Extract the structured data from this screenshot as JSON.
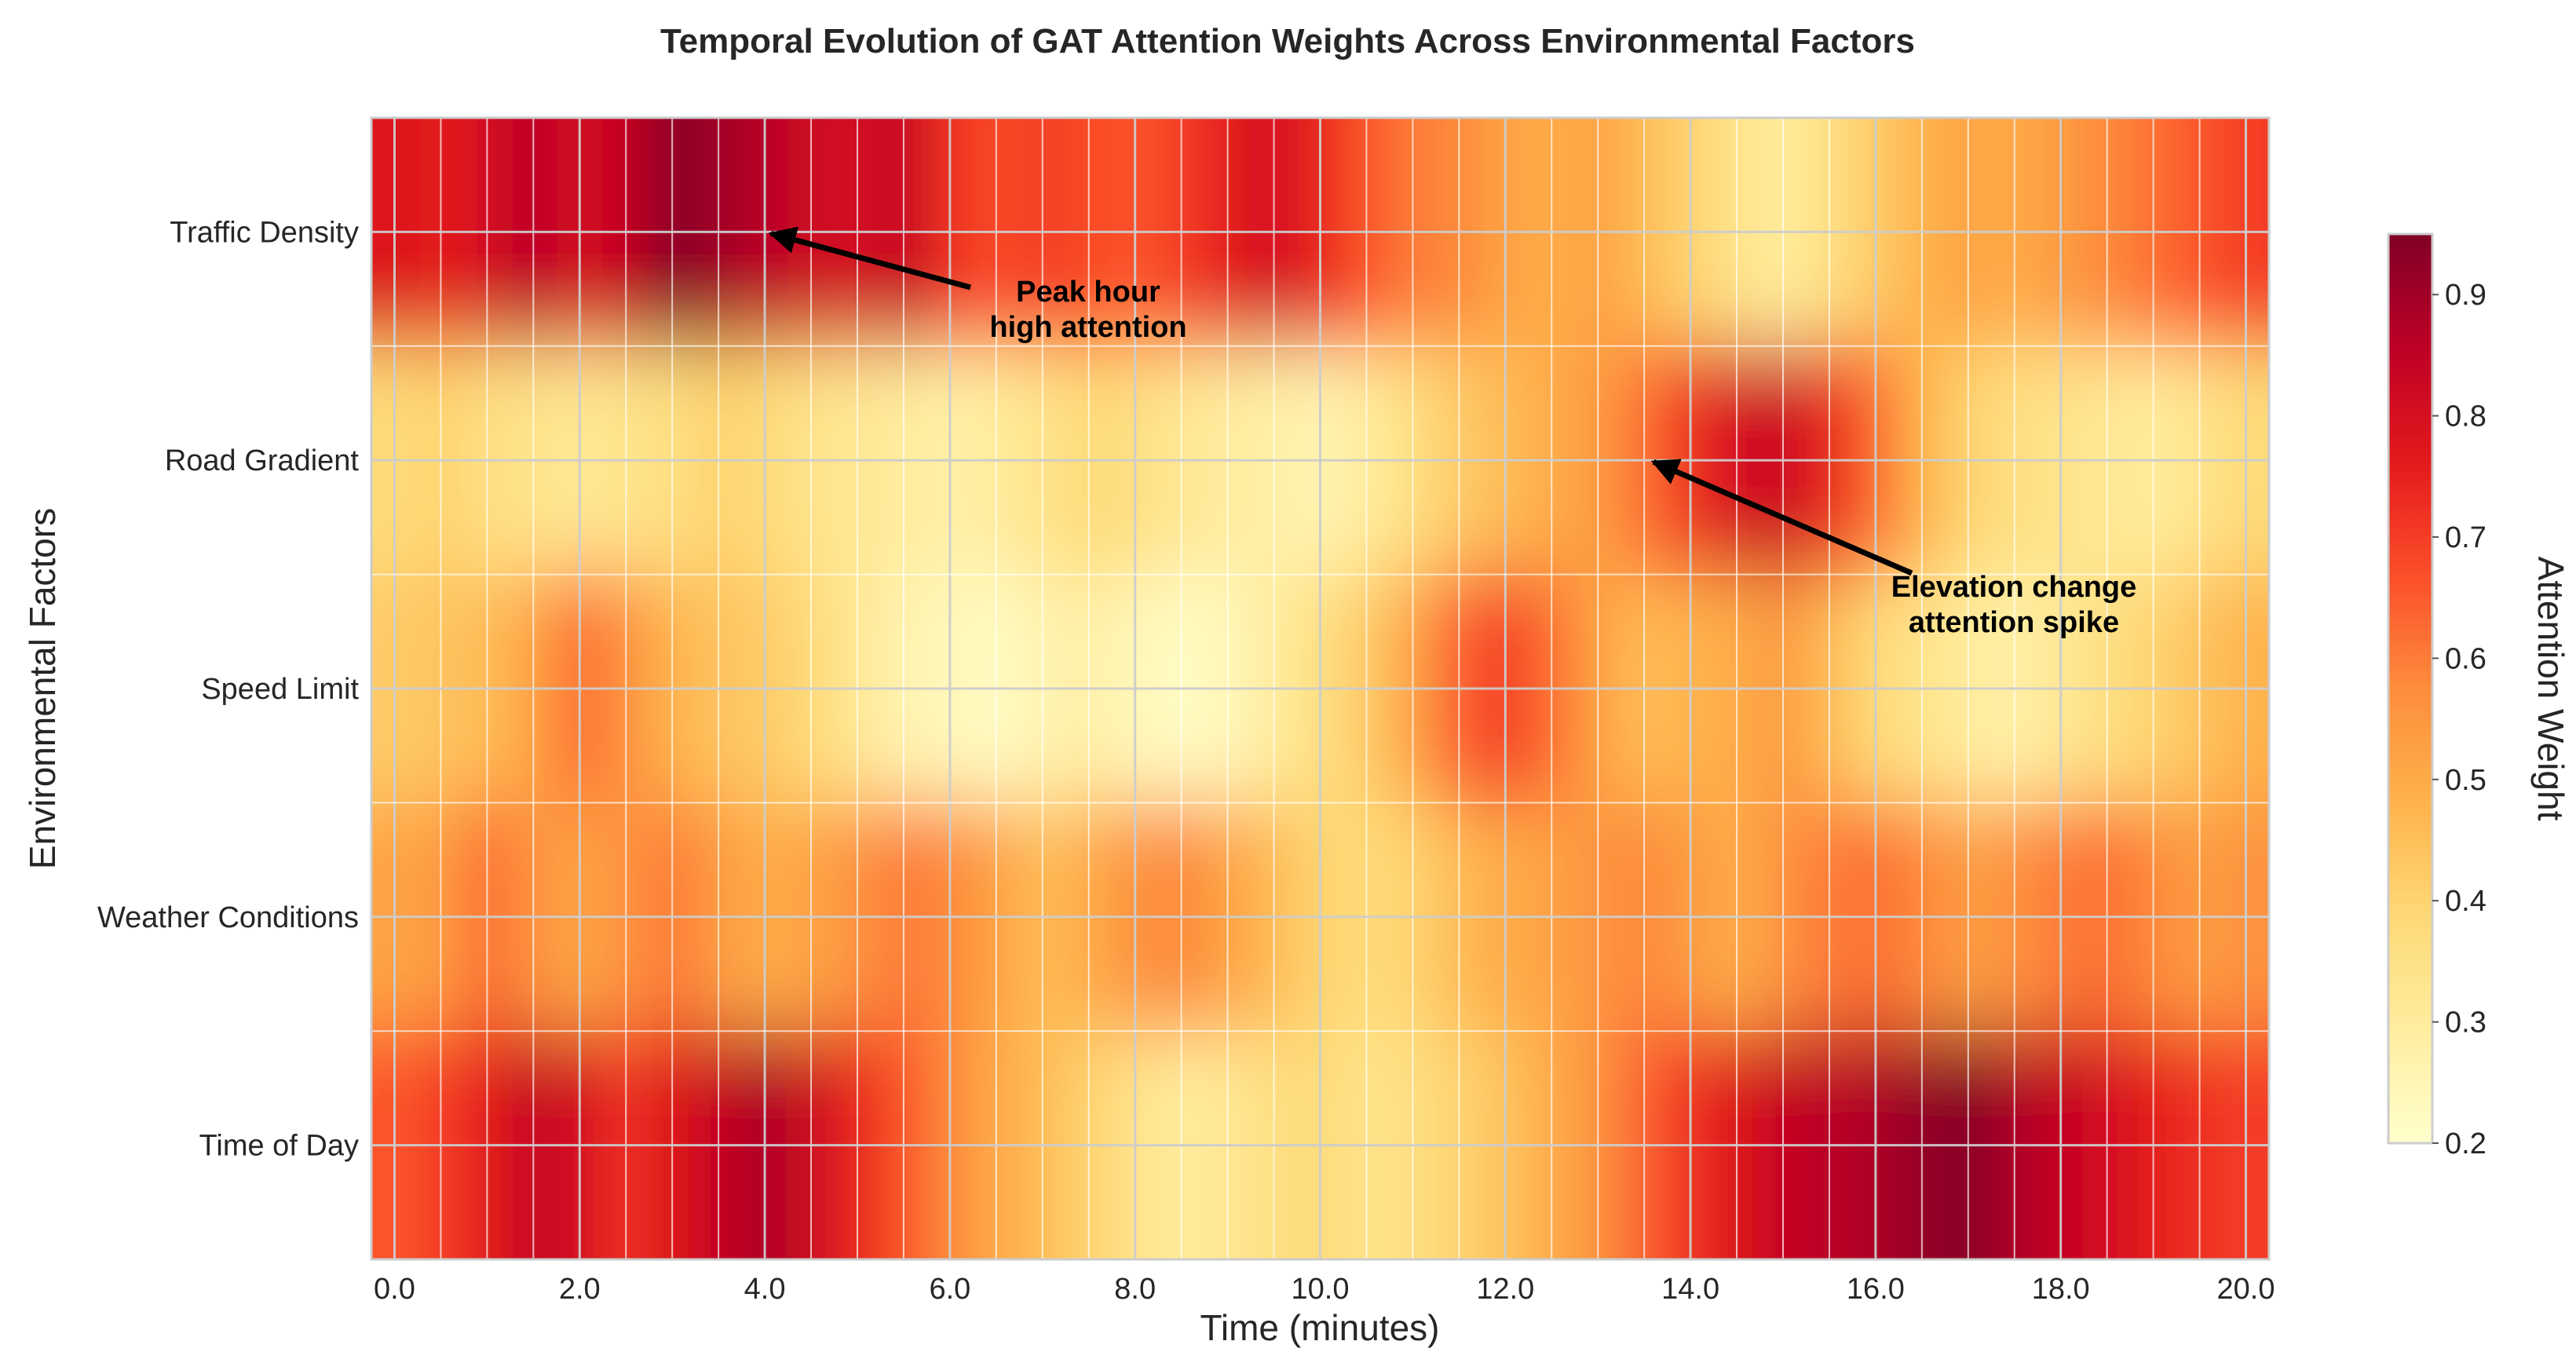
{
  "chart_data": {
    "type": "heatmap",
    "title": "Temporal Evolution of GAT Attention Weights Across Environmental Factors",
    "xlabel": "Time (minutes)",
    "ylabel": "Environmental Factors",
    "xlim": [
      -0.25,
      20.25
    ],
    "x_ticks": [
      "0.0",
      "2.0",
      "4.0",
      "6.0",
      "8.0",
      "10.0",
      "12.0",
      "14.0",
      "16.0",
      "18.0",
      "20.0"
    ],
    "x_tick_values": [
      0,
      2,
      4,
      6,
      8,
      10,
      12,
      14,
      16,
      18,
      20
    ],
    "factors": [
      "Traffic Density",
      "Road Gradient",
      "Speed Limit",
      "Weather Conditions",
      "Time of Day"
    ],
    "time": [
      0.0,
      0.5,
      1.0,
      1.5,
      2.0,
      2.5,
      3.0,
      3.5,
      4.0,
      4.5,
      5.0,
      5.5,
      6.0,
      6.5,
      7.0,
      7.5,
      8.0,
      8.5,
      9.0,
      9.5,
      10.0,
      10.5,
      11.0,
      11.5,
      12.0,
      12.5,
      13.0,
      13.5,
      14.0,
      14.5,
      15.0,
      15.5,
      16.0,
      16.5,
      17.0,
      17.5,
      18.0,
      18.5,
      19.0,
      19.5,
      20.0
    ],
    "values": [
      [
        0.78,
        0.76,
        0.8,
        0.86,
        0.8,
        0.84,
        0.94,
        0.9,
        0.86,
        0.82,
        0.8,
        0.84,
        0.72,
        0.68,
        0.7,
        0.68,
        0.66,
        0.7,
        0.76,
        0.8,
        0.74,
        0.66,
        0.6,
        0.58,
        0.52,
        0.5,
        0.52,
        0.46,
        0.4,
        0.34,
        0.3,
        0.36,
        0.42,
        0.48,
        0.52,
        0.5,
        0.54,
        0.58,
        0.62,
        0.66,
        0.7
      ],
      [
        0.38,
        0.4,
        0.36,
        0.34,
        0.32,
        0.34,
        0.36,
        0.4,
        0.38,
        0.34,
        0.32,
        0.3,
        0.28,
        0.3,
        0.34,
        0.38,
        0.36,
        0.32,
        0.3,
        0.28,
        0.26,
        0.3,
        0.36,
        0.42,
        0.46,
        0.5,
        0.54,
        0.62,
        0.72,
        0.8,
        0.82,
        0.74,
        0.62,
        0.48,
        0.4,
        0.36,
        0.34,
        0.32,
        0.3,
        0.34,
        0.38
      ],
      [
        0.42,
        0.44,
        0.46,
        0.52,
        0.62,
        0.56,
        0.48,
        0.44,
        0.42,
        0.38,
        0.32,
        0.26,
        0.24,
        0.22,
        0.26,
        0.28,
        0.24,
        0.22,
        0.24,
        0.3,
        0.36,
        0.42,
        0.52,
        0.64,
        0.7,
        0.62,
        0.52,
        0.46,
        0.48,
        0.5,
        0.54,
        0.46,
        0.38,
        0.34,
        0.3,
        0.28,
        0.32,
        0.36,
        0.4,
        0.44,
        0.48
      ],
      [
        0.52,
        0.54,
        0.62,
        0.56,
        0.52,
        0.56,
        0.6,
        0.54,
        0.5,
        0.52,
        0.56,
        0.6,
        0.58,
        0.52,
        0.46,
        0.5,
        0.56,
        0.58,
        0.52,
        0.46,
        0.4,
        0.38,
        0.4,
        0.46,
        0.5,
        0.52,
        0.56,
        0.58,
        0.54,
        0.5,
        0.56,
        0.6,
        0.62,
        0.58,
        0.54,
        0.56,
        0.6,
        0.62,
        0.58,
        0.54,
        0.56
      ],
      [
        0.66,
        0.7,
        0.76,
        0.84,
        0.8,
        0.72,
        0.78,
        0.84,
        0.88,
        0.82,
        0.74,
        0.66,
        0.58,
        0.5,
        0.46,
        0.4,
        0.34,
        0.3,
        0.32,
        0.36,
        0.38,
        0.34,
        0.36,
        0.4,
        0.44,
        0.5,
        0.56,
        0.64,
        0.72,
        0.78,
        0.84,
        0.86,
        0.88,
        0.92,
        0.94,
        0.88,
        0.84,
        0.8,
        0.76,
        0.72,
        0.7
      ]
    ],
    "colorbar": {
      "label": "Attention Weight",
      "min": 0.2,
      "max": 0.95,
      "ticks": [
        "0.2",
        "0.3",
        "0.4",
        "0.5",
        "0.6",
        "0.7",
        "0.8",
        "0.9"
      ],
      "tick_values": [
        0.2,
        0.3,
        0.4,
        0.5,
        0.6,
        0.7,
        0.8,
        0.9
      ],
      "colormap": "YlOrRd",
      "stops": [
        "#ffffcc",
        "#ffeda0",
        "#fed976",
        "#feb24c",
        "#fd8d3c",
        "#fc4e2a",
        "#e31a1c",
        "#bd0026",
        "#800026"
      ]
    },
    "annotations": [
      {
        "lines": [
          "Peak hour",
          "high attention"
        ],
        "target_time": 4.0,
        "target_factor": "Traffic Density"
      },
      {
        "lines": [
          "Elevation change",
          "attention spike"
        ],
        "target_time": 13.6,
        "target_factor": "Road Gradient"
      }
    ],
    "grid": true
  }
}
